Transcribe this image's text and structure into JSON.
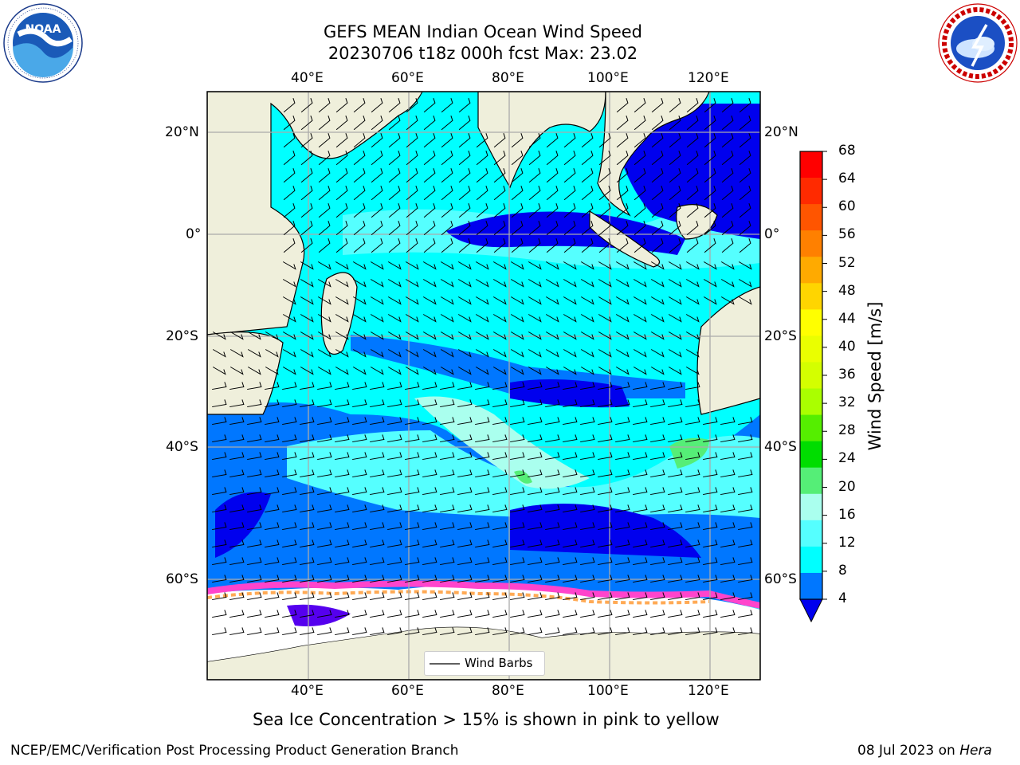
{
  "header": {
    "title_line1": "GEFS MEAN Indian Ocean Wind Speed",
    "title_line2": "20230706 t18z 000h fcst   Max: 23.02"
  },
  "logos": {
    "left": {
      "name": "NOAA",
      "ring_text": "NATIONAL OCEANIC AND ATMOSPHERIC ADMINISTRATION · U.S. DEPARTMENT OF COMMERCE"
    },
    "right": {
      "name": "NATIONAL WEATHER SERVICE"
    }
  },
  "map": {
    "lon_ticks": [
      "40°E",
      "60°E",
      "80°E",
      "100°E",
      "120°E"
    ],
    "lat_ticks": [
      "20°N",
      "0°",
      "20°S",
      "40°S",
      "60°S"
    ],
    "legend_label": "Wind Barbs",
    "ice_note": "Sea Ice Concentration > 15% is shown in pink to yellow"
  },
  "colorbar": {
    "label": "Wind Speed [m/s]",
    "ticks": [
      "68",
      "64",
      "60",
      "56",
      "52",
      "48",
      "44",
      "40",
      "36",
      "32",
      "28",
      "24",
      "20",
      "16",
      "12",
      "8",
      "4"
    ],
    "colors": [
      "#ff0000",
      "#ff2a00",
      "#ff5500",
      "#ff8000",
      "#ffaa00",
      "#ffd500",
      "#ffff00",
      "#eaff00",
      "#d4ff00",
      "#aaff00",
      "#55ee00",
      "#00dd00",
      "#55ee77",
      "#aaffee",
      "#55ffff",
      "#00ffff",
      "#0077ff"
    ],
    "under_color": "#0000ee"
  },
  "footer": {
    "left": "NCEP/EMC/Verification Post Processing Product Generation Branch",
    "right_date": "08 Jul 2023 on ",
    "right_machine": "Hera"
  }
}
